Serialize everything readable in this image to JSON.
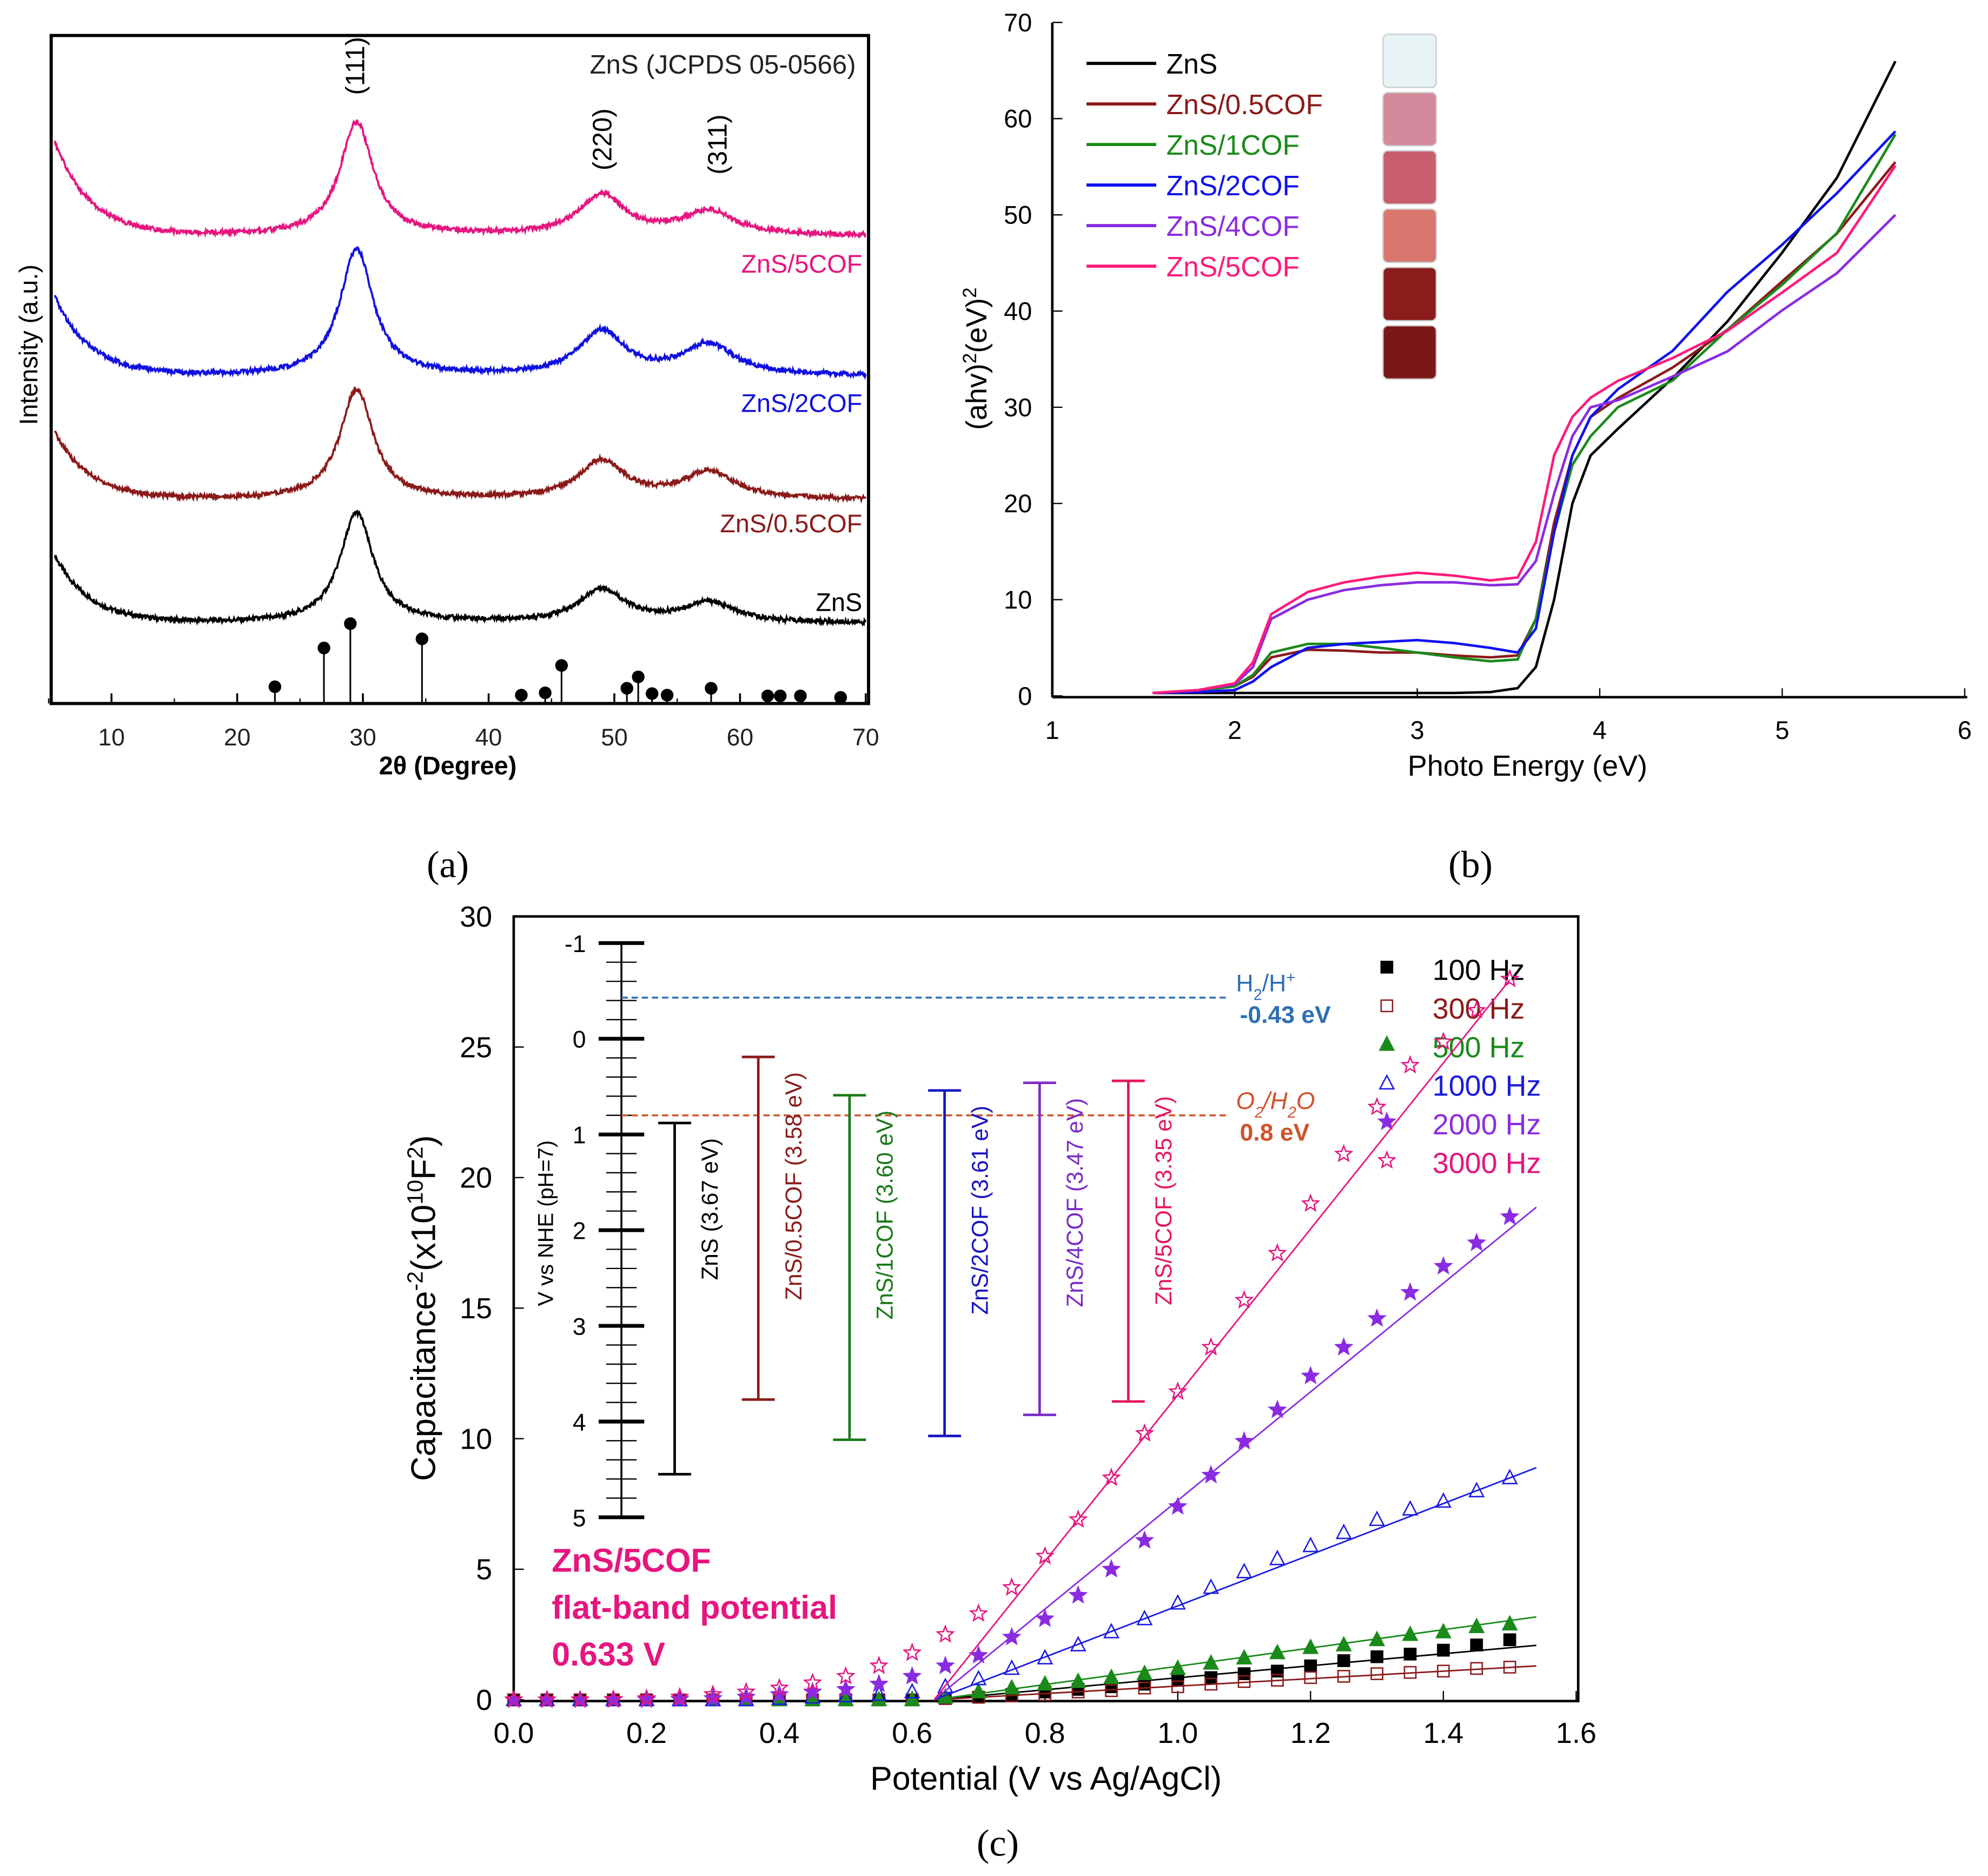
{
  "captions": {
    "a": "(a)",
    "b": "(b)",
    "c": "(c)"
  },
  "chart_data": [
    {
      "type": "line",
      "panel": "a",
      "title": "ZnS (JCPDS 05-0566)",
      "xlabel": "2θ (Degree)",
      "ylabel": "Intensity (a.u.)",
      "xlim": [
        5,
        70
      ],
      "xticks": [
        10,
        20,
        30,
        40,
        50,
        60,
        70
      ],
      "peak_labels": [
        {
          "label": "(111)",
          "x": 29.5
        },
        {
          "label": "(220)",
          "x": 49
        },
        {
          "label": "(311)",
          "x": 57.5
        }
      ],
      "peak_centers": [
        29.5,
        49,
        57.5
      ],
      "series": [
        {
          "name": "ZnS",
          "color": "#000000",
          "offset": 12,
          "start": 10,
          "peaks": [
            16.5,
            5,
            3
          ]
        },
        {
          "name": "ZnS/0.5COF",
          "color": "#8b1a1a",
          "offset": 30.5,
          "start": 10,
          "peaks": [
            16.5,
            5.7,
            4
          ]
        },
        {
          "name": "ZnS/2COF",
          "color": "#1010e0",
          "offset": 49,
          "start": 11.8,
          "peaks": [
            19,
            6.6,
            4.6
          ]
        },
        {
          "name": "ZnS/5COF",
          "color": "#e6157f",
          "offset": 70,
          "start": 14,
          "peaks": [
            17,
            6,
            3.6
          ]
        }
      ],
      "reference_sticks": {
        "x": [
          23,
          26.9,
          29,
          34.7,
          42.6,
          44.5,
          45.8,
          51,
          51.9,
          53,
          54.2,
          57.7,
          62.2,
          63.2,
          64.8,
          68
        ],
        "relative_intensity": [
          17,
          68,
          100,
          80,
          6,
          9,
          45,
          15,
          30,
          8,
          6,
          15,
          5,
          5,
          5,
          3
        ]
      }
    },
    {
      "type": "line",
      "panel": "b",
      "xlabel": "Photo Energy (eV)",
      "ylabel": [
        "(ahv)",
        "2",
        "(eV)",
        "2"
      ],
      "xlim": [
        1,
        6
      ],
      "ylim": [
        0,
        70
      ],
      "xticks": [
        1,
        2,
        3,
        4,
        5,
        6
      ],
      "yticks": [
        0,
        10,
        20,
        30,
        40,
        50,
        60,
        70
      ],
      "legend_position": "top-left",
      "x": [
        1.55,
        1.8,
        2.0,
        2.1,
        2.2,
        2.4,
        2.6,
        2.8,
        3.0,
        3.2,
        3.4,
        3.55,
        3.65,
        3.75,
        3.85,
        3.95,
        4.1,
        4.4,
        4.7,
        5.0,
        5.3,
        5.62
      ],
      "series": [
        {
          "name": "ZnS",
          "color": "#000000",
          "swatch": "#e6f2f4",
          "values": [
            0.3,
            0.3,
            0.3,
            0.3,
            0.3,
            0.3,
            0.3,
            0.3,
            0.3,
            0.3,
            0.4,
            0.8,
            3,
            10,
            20,
            25,
            28,
            33,
            39,
            46,
            54,
            66
          ]
        },
        {
          "name": "ZnS/0.5COF",
          "color": "#8b1a1a",
          "swatch": "#d48a9c",
          "values": [
            0.3,
            0.5,
            1,
            2,
            4,
            4.8,
            4.7,
            4.5,
            4.5,
            4.2,
            4.0,
            4.2,
            8,
            18,
            25,
            29,
            31,
            34,
            38,
            43,
            48,
            55.5
          ]
        },
        {
          "name": "ZnS/1COF",
          "color": "#1a8a1a",
          "swatch": "#c85d70",
          "values": [
            0.3,
            0.5,
            1,
            2.2,
            4.5,
            5.4,
            5.4,
            5,
            4.5,
            4,
            3.6,
            3.8,
            8,
            17,
            24,
            27,
            30,
            33,
            38,
            43,
            48,
            58.5
          ]
        },
        {
          "name": "ZnS/2COF",
          "color": "#1010f0",
          "swatch": "#d9776f",
          "values": [
            0.3,
            0.4,
            0.6,
            1.5,
            3,
            5,
            5.4,
            5.6,
            5.8,
            5.5,
            5,
            4.5,
            7,
            17,
            25,
            29,
            32,
            36,
            42,
            47,
            52,
            58.8
          ]
        },
        {
          "name": "ZnS/4COF",
          "color": "#8a2be2",
          "swatch": "#8a1c1c",
          "values": [
            0.3,
            0.6,
            1.2,
            3,
            8,
            10,
            11,
            11.5,
            11.8,
            11.8,
            11.5,
            11.6,
            14,
            21,
            27,
            30,
            31,
            33,
            36,
            40,
            44,
            50
          ]
        },
        {
          "name": "ZnS/5COF",
          "color": "#ff1a7a",
          "swatch": "#7a1818",
          "values": [
            0.3,
            0.6,
            1.3,
            3.5,
            8.5,
            10.8,
            11.8,
            12.4,
            12.8,
            12.5,
            12,
            12.3,
            16,
            25,
            29,
            31,
            32.5,
            35,
            38,
            42,
            46,
            55
          ]
        }
      ]
    },
    {
      "type": "scatter",
      "panel": "c",
      "xlabel": "Potential (V vs Ag/AgCl)",
      "ylabel": [
        "Capacitance",
        "-2",
        "(x10",
        "10",
        "F",
        "2",
        ")"
      ],
      "xlim": [
        0,
        1.6
      ],
      "ylim": [
        0,
        30
      ],
      "xticks": [
        "0.0",
        "0.2",
        "0.4",
        "0.6",
        "0.8",
        "1.0",
        "1.2",
        "1.4",
        "1.6"
      ],
      "yticks": [
        0,
        5,
        10,
        15,
        20,
        25,
        30
      ],
      "legend_position": "top-right",
      "x": [
        0,
        0.05,
        0.1,
        0.15,
        0.2,
        0.25,
        0.3,
        0.35,
        0.4,
        0.45,
        0.5,
        0.55,
        0.6,
        0.65,
        0.7,
        0.75,
        0.8,
        0.85,
        0.9,
        0.95,
        1.0,
        1.05,
        1.1,
        1.15,
        1.2,
        1.25,
        1.3,
        1.35,
        1.4,
        1.45,
        1.5
      ],
      "series": [
        {
          "name": "100 Hz",
          "color": "#000000",
          "marker": "square-filled",
          "fit_slope": 2.3,
          "values": [
            0,
            0,
            0,
            0,
            0,
            0,
            0,
            0,
            0,
            0,
            0,
            0,
            0,
            0.05,
            0.1,
            0.2,
            0.3,
            0.4,
            0.5,
            0.6,
            0.75,
            0.85,
            1.0,
            1.1,
            1.3,
            1.5,
            1.65,
            1.75,
            1.9,
            2.1,
            2.3
          ]
        },
        {
          "name": "300 Hz",
          "color": "#8b1a1a",
          "marker": "square-open",
          "fit_slope": 1.43,
          "values": [
            0,
            0,
            0,
            0,
            0,
            0,
            0,
            0,
            0,
            0,
            0,
            0,
            0,
            0.05,
            0.1,
            0.15,
            0.2,
            0.3,
            0.35,
            0.45,
            0.5,
            0.6,
            0.7,
            0.75,
            0.85,
            0.9,
            1.0,
            1.05,
            1.1,
            1.2,
            1.25
          ]
        },
        {
          "name": "500 Hz",
          "color": "#1a8a1a",
          "marker": "triangle-filled",
          "fit_slope": 3.5,
          "values": [
            0,
            0,
            0,
            0,
            0,
            0,
            0,
            0,
            0,
            0,
            0,
            0,
            0,
            0.1,
            0.3,
            0.45,
            0.6,
            0.7,
            0.85,
            1.0,
            1.2,
            1.4,
            1.6,
            1.8,
            2.0,
            2.1,
            2.3,
            2.5,
            2.6,
            2.8,
            2.9
          ]
        },
        {
          "name": "1000 Hz",
          "color": "#1a1ae6",
          "marker": "triangle-open",
          "fit_slope": 9.8,
          "values": [
            0,
            0,
            0,
            0,
            0,
            0,
            0,
            0,
            0.05,
            0.1,
            0.15,
            0.2,
            0.3,
            0.5,
            0.8,
            1.2,
            1.6,
            2.1,
            2.6,
            3.1,
            3.7,
            4.3,
            4.9,
            5.4,
            5.9,
            6.4,
            6.9,
            7.3,
            7.6,
            8.0,
            8.5
          ]
        },
        {
          "name": "2000 Hz",
          "color": "#8a2be2",
          "marker": "star-filled",
          "fit_slope": 20.8,
          "values": [
            0,
            0,
            0,
            0,
            0,
            0.02,
            0.05,
            0.1,
            0.2,
            0.3,
            0.4,
            0.6,
            0.9,
            1.3,
            1.7,
            2.4,
            3.1,
            4.0,
            5.0,
            6.1,
            7.4,
            8.6,
            9.9,
            11.1,
            12.4,
            13.5,
            14.6,
            15.6,
            16.6,
            17.5,
            18.5
          ]
        },
        {
          "name": "3000 Hz",
          "color": "#e6157f",
          "marker": "star-open",
          "fit_slope": 31.8,
          "values": [
            0,
            0,
            0,
            0.02,
            0.05,
            0.1,
            0.2,
            0.3,
            0.45,
            0.65,
            0.9,
            1.3,
            1.8,
            2.5,
            3.3,
            4.3,
            5.5,
            6.9,
            8.5,
            10.2,
            11.8,
            13.5,
            15.3,
            17.1,
            19.0,
            20.9,
            22.7,
            24.3,
            25.2,
            26.4,
            27.6
          ]
        }
      ],
      "fit_x_intercept": 0.633,
      "annotation": [
        "ZnS/5COF",
        "flat-band potential",
        "0.633 V"
      ],
      "inset": {
        "ylabel": "V vs NHE (pH=7)",
        "ylim": [
          -1,
          5
        ],
        "yticks": [
          -1,
          0,
          1,
          2,
          3,
          4,
          5
        ],
        "bands": [
          {
            "label": "ZnS (3.67 eV)",
            "cb": 0.88,
            "vb": 4.55,
            "color": "#000000"
          },
          {
            "label": "ZnS/0.5COF (3.58 eV)",
            "cb": 0.19,
            "vb": 3.77,
            "color": "#8b1a1a"
          },
          {
            "label": "ZnS/1COF (3.60 eV)",
            "cb": 0.59,
            "vb": 4.19,
            "color": "#1a7a1a"
          },
          {
            "label": "ZnS/2COF (3.61 eV)",
            "cb": 0.54,
            "vb": 4.15,
            "color": "#1515c0"
          },
          {
            "label": "ZnS/4COF (3.47 eV)",
            "cb": 0.46,
            "vb": 3.93,
            "color": "#7a2bc8"
          },
          {
            "label": "ZnS/5COF (3.35 eV)",
            "cb": 0.44,
            "vb": 3.79,
            "color": "#e6155f"
          }
        ],
        "reference_levels": [
          {
            "name": [
              "H",
              "2",
              "/H",
              "+"
            ],
            "value_label": "-0.43 eV",
            "value": -0.43,
            "color": "#2e6fb5"
          },
          {
            "name": [
              "O",
              "2",
              "/H",
              "2",
              "O"
            ],
            "value_label": "0.8 eV",
            "value": 0.8,
            "color": "#d0522a"
          }
        ]
      }
    }
  ]
}
